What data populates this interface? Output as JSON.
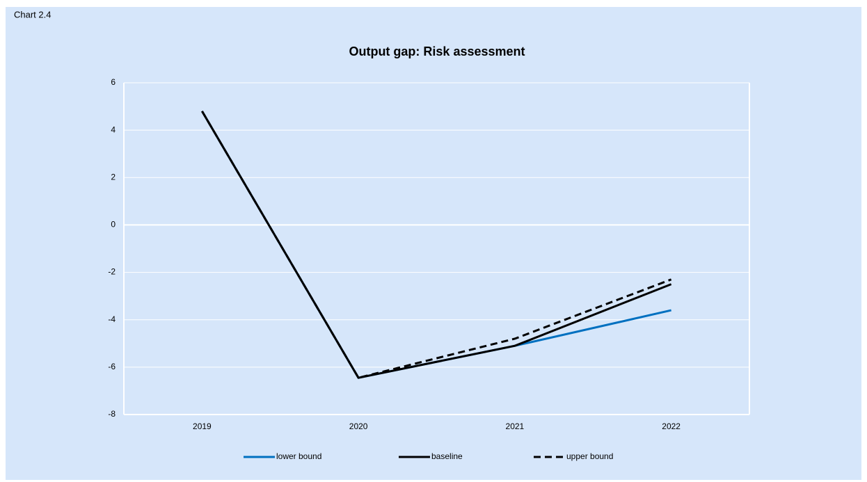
{
  "chart_data": {
    "type": "line",
    "chart_label": "Chart 2.4",
    "title": "Output gap: Risk assessment",
    "categories": [
      "2019",
      "2020",
      "2021",
      "2022"
    ],
    "series": [
      {
        "name": "lower bound",
        "color": "#0070c0",
        "line_style": "solid",
        "values": [
          4.8,
          -6.45,
          -5.1,
          -3.6
        ]
      },
      {
        "name": "baseline",
        "color": "#000000",
        "line_style": "solid",
        "values": [
          4.8,
          -6.45,
          -5.1,
          -2.5
        ]
      },
      {
        "name": "upper bound",
        "color": "#000000",
        "line_style": "dashed",
        "values": [
          4.8,
          -6.45,
          -4.8,
          -2.3
        ]
      }
    ],
    "ylim": [
      -8,
      6
    ],
    "yticks": [
      -8,
      -6,
      -4,
      -2,
      0,
      2,
      4,
      6
    ],
    "grid": true,
    "legend": "bottom"
  }
}
